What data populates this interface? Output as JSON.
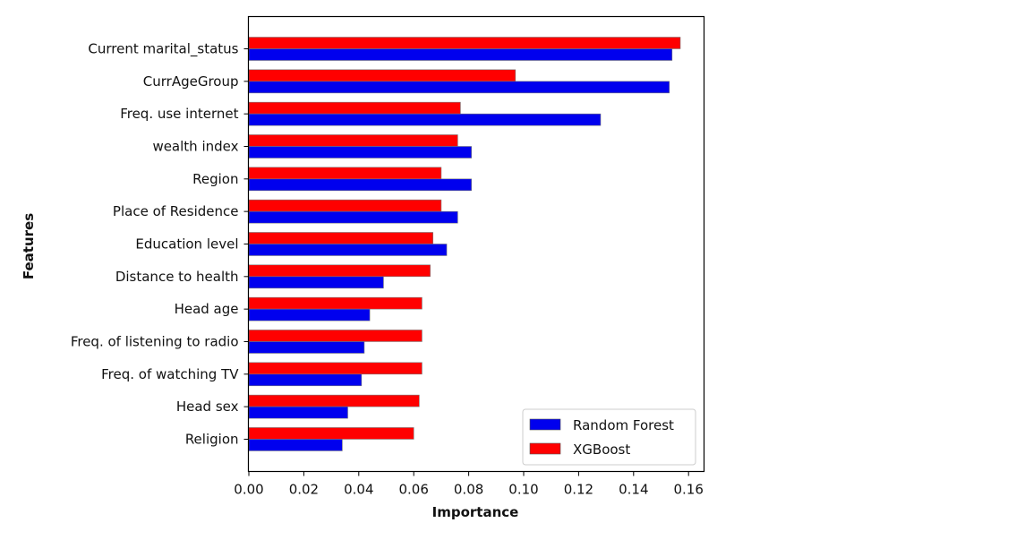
{
  "chart_data": {
    "type": "bar",
    "orientation": "horizontal",
    "title": "",
    "xlabel": "Importance",
    "ylabel": "Features",
    "xlim": [
      0.0,
      0.165
    ],
    "xticks": [
      0.0,
      0.02,
      0.04,
      0.06,
      0.08,
      0.1,
      0.12,
      0.14,
      0.16
    ],
    "xtick_labels": [
      "0.00",
      "0.02",
      "0.04",
      "0.06",
      "0.08",
      "0.10",
      "0.12",
      "0.14",
      "0.16"
    ],
    "grid": false,
    "legend_position": "bottom-right",
    "categories": [
      "Current marital_status",
      "CurrAgeGroup",
      "Freq. use internet",
      "wealth index",
      "Region",
      "Place of Residence",
      "Education level",
      "Distance to health",
      "Head age",
      "Freq. of listening to radio",
      "Freq. of watching TV",
      "Head sex",
      "Religion"
    ],
    "series": [
      {
        "name": "Random Forest",
        "color": "#0000ee",
        "values": [
          0.154,
          0.153,
          0.128,
          0.081,
          0.081,
          0.076,
          0.072,
          0.049,
          0.044,
          0.042,
          0.041,
          0.036,
          0.034
        ]
      },
      {
        "name": "XGBoost",
        "color": "#ff0000",
        "values": [
          0.157,
          0.097,
          0.077,
          0.076,
          0.07,
          0.07,
          0.067,
          0.066,
          0.063,
          0.063,
          0.063,
          0.062,
          0.06
        ]
      }
    ]
  }
}
